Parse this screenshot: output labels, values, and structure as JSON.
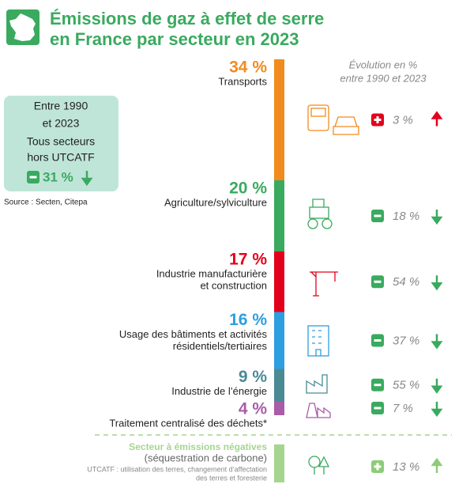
{
  "chart_data": {
    "type": "stacked_column",
    "title": [
      "Émissions de gaz à effet de serre",
      "en France par secteur en 2023"
    ],
    "title_color": "#3aaa5f",
    "evolution_title": [
      "Évolution en %",
      "entre 1990 et 2023"
    ],
    "summary": {
      "lines": [
        "Entre 1990",
        "et 2023",
        "Tous secteurs",
        "hors UTCATF"
      ],
      "value": -31,
      "value_label": "31 %",
      "color": "#3aaa5f",
      "background": "#bfe5d9"
    },
    "source": "Source : Secten, Citepa",
    "categories": [
      [
        "Transports"
      ],
      [
        "Agriculture/sylviculture"
      ],
      [
        "Industrie manufacturière",
        "et construction"
      ],
      [
        "Usage des bâtiments et activités",
        "résidentiels/tertiaires"
      ],
      [
        "Industrie de l’énergie"
      ],
      [
        "Traitement centralisé des déchets*"
      ]
    ],
    "values": [
      34,
      20,
      17,
      16,
      9,
      4
    ],
    "value_labels": [
      "34 %",
      "20 %",
      "17 %",
      "16 %",
      "9 %",
      "4 %"
    ],
    "colors": [
      "#f28b1e",
      "#3aaa5f",
      "#e3001b",
      "#2d9ee0",
      "#4a8a95",
      "#a95ca8"
    ],
    "evolution": [
      3,
      -18,
      -54,
      -37,
      -55,
      -7
    ],
    "evolution_labels": [
      "3 %",
      "18 %",
      "54 %",
      "37 %",
      "55 %",
      "7 %"
    ],
    "evolution_colors": [
      "#e3001b",
      "#3aaa5f",
      "#3aaa5f",
      "#3aaa5f",
      "#3aaa5f",
      "#3aaa5f"
    ],
    "negative_sector": {
      "title": "Secteur à émissions négatives",
      "subtitle": "(séquestration de carbone)",
      "note": [
        "UTCATF : utilisation des terres, changement d’affectation",
        "des terres et foresterie"
      ],
      "evolution": 13,
      "evolution_label": "13 %",
      "color": "#a6d58f",
      "evolution_color": "#8ccc78"
    }
  }
}
